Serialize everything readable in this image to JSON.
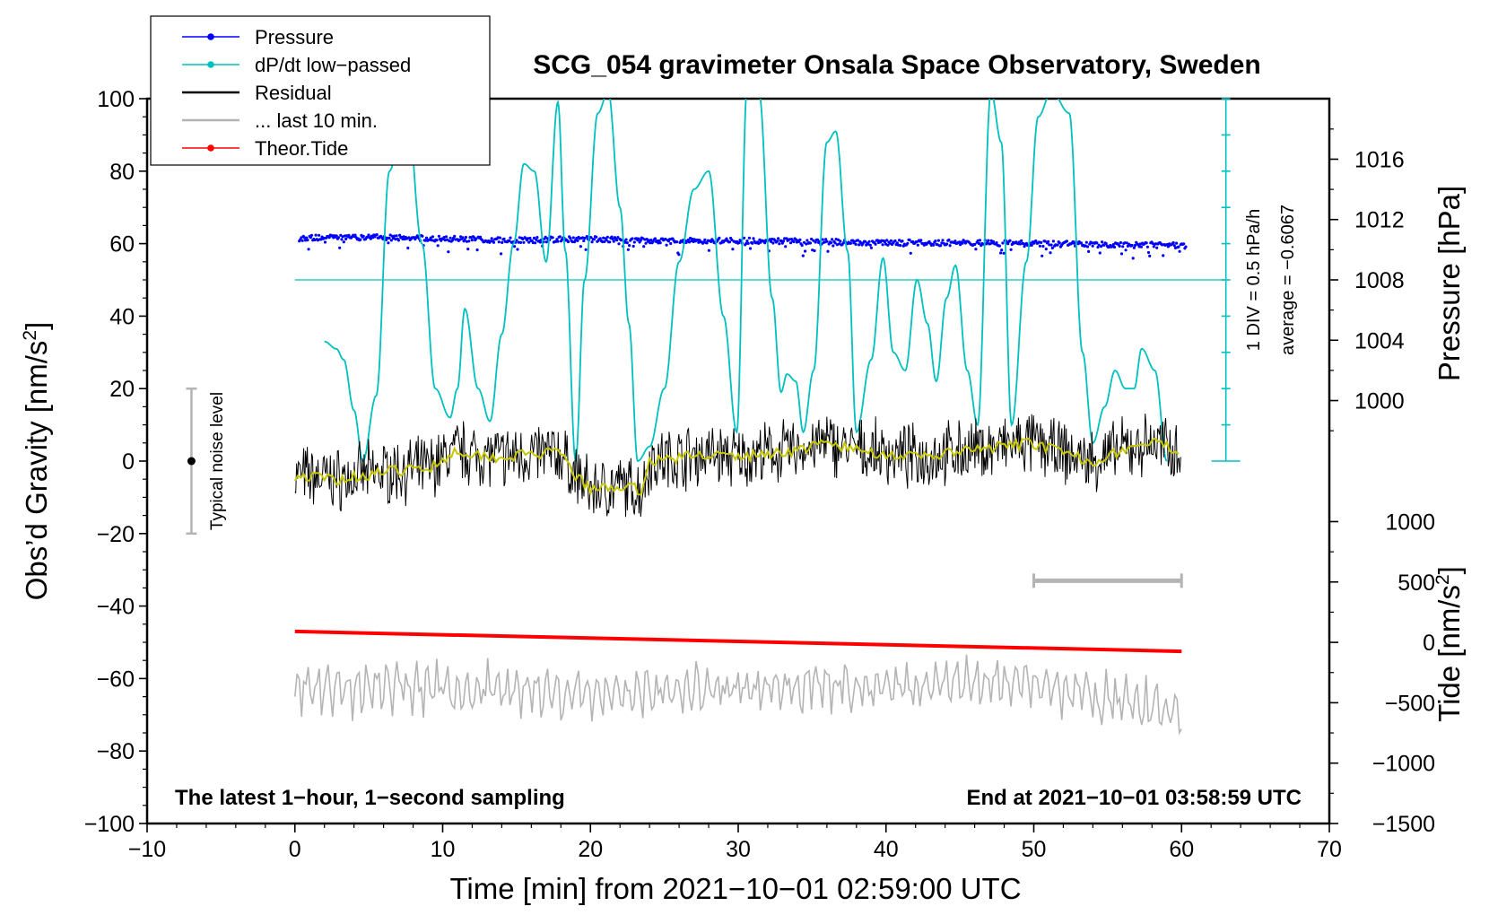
{
  "chart_data": {
    "type": "line",
    "title": "SCG_054 gravimeter Onsala Space Observatory, Sweden",
    "xlabel": "Time [min] from 2021−10−01 02:59:00 UTC",
    "ylabel_left": "Obs’d Gravity [nm/s",
    "ylabel_left_sup": "2",
    "ylabel_left_end": "]",
    "ylabel_right_pressure": "Pressure [hPa]",
    "ylabel_right_tide": "Tide [nm/s",
    "ylabel_right_tide_sup": "2",
    "ylabel_right_tide_end": "]",
    "xlim": [
      -10,
      70
    ],
    "ylim": [
      -100,
      100
    ],
    "x_ticks": [
      -10,
      0,
      10,
      20,
      30,
      40,
      50,
      60,
      70
    ],
    "x_tick_labels": [
      "−10",
      "0",
      "10",
      "20",
      "30",
      "40",
      "50",
      "60",
      "70"
    ],
    "y_ticks": [
      -100,
      -80,
      -60,
      -40,
      -20,
      0,
      20,
      40,
      60,
      80,
      100
    ],
    "y_tick_labels": [
      "−100",
      "−80",
      "−60",
      "−40",
      "−20",
      "0",
      "20",
      "40",
      "60",
      "80",
      "100"
    ],
    "pressure_axis": {
      "ticks": [
        1000,
        1004,
        1008,
        1012,
        1016
      ],
      "tick_labels": [
        "1000",
        "1004",
        "1008",
        "1012",
        "1016"
      ],
      "anchor_ticks": [
        {
          "value": 1000,
          "gravity": 16.7
        },
        {
          "value": 1016,
          "gravity": 83.3
        }
      ]
    },
    "tide_axis": {
      "ticks": [
        -1500,
        -1000,
        -500,
        0,
        500,
        1000
      ],
      "tick_labels": [
        "−1500",
        "−1000",
        "−500",
        "0",
        "500",
        "1000"
      ],
      "anchor_ticks": [
        {
          "value": -1500,
          "gravity": -100
        },
        {
          "value": 1000,
          "gravity": -16.7
        }
      ]
    },
    "dpdt_scale": {
      "label_div": "1 DIV = 0.5 hPa/h",
      "label_avg": "average = −0.6067",
      "x_position_min": 63,
      "divisions": 10,
      "gravity_range": [
        0,
        100
      ],
      "average_line_gravity": 50
    },
    "legend": [
      {
        "label": "Pressure",
        "color": "#0000ff",
        "marker": true
      },
      {
        "label": "dP/dt low−passed",
        "color": "#00c0c0",
        "marker": true
      },
      {
        "label": "Residual",
        "color": "#000000",
        "marker": false
      },
      {
        "label": "... last 10 min.",
        "color": "#b4b4b4",
        "marker": false
      },
      {
        "label": "Theor.Tide",
        "color": "#ff0000",
        "marker": true
      }
    ],
    "annotations": {
      "bottom_left": "The latest 1−hour, 1−second sampling",
      "bottom_right": "End at 2021−10−01 03:58:59 UTC",
      "noise_label": "Typical noise level"
    },
    "noise_bar": {
      "x": -7,
      "center": 0,
      "low": -20,
      "high": 20
    },
    "last10_bar": {
      "x_start": 50,
      "x_end": 60,
      "y": -33
    },
    "series": [
      {
        "name": "Pressure",
        "color": "#0000ff",
        "style": "scatter",
        "units": "gravity-axis equivalent",
        "x": [
          0,
          5,
          10,
          15,
          20,
          25,
          30,
          35,
          40,
          45,
          50,
          55,
          60
        ],
        "y": [
          61.5,
          61.8,
          61.3,
          61.0,
          61.2,
          60.8,
          60.9,
          60.5,
          60.3,
          60.2,
          60.0,
          59.8,
          59.5
        ]
      },
      {
        "name": "dP/dt low-passed",
        "color": "#00c0c0",
        "style": "line",
        "x": [
          2,
          2.8,
          3.3,
          4,
          4.6,
          5.5,
          6.4,
          7.5,
          8.6,
          9.5,
          10.5,
          11,
          11.5,
          12.4,
          13.2,
          14,
          14.8,
          15.5,
          16.2,
          17,
          17.8,
          18.3,
          19,
          19.6,
          20.5,
          21.2,
          22,
          22.6,
          23.2,
          24,
          25,
          26,
          27,
          28,
          29,
          29.9,
          30.6,
          31.4,
          32.3,
          32.9,
          33.3,
          33.9,
          34.4,
          35.1,
          36,
          36.6,
          37.4,
          38,
          39,
          39.8,
          40.5,
          41.3,
          42.1,
          42.8,
          43.4,
          44.1,
          44.7,
          45.5,
          46.2,
          47.1,
          47.8,
          48.5,
          49.5,
          50.3,
          51.2,
          52.4,
          53.3,
          54,
          54.8,
          55.5,
          56.2,
          56.8,
          57.3,
          58.2,
          59
        ],
        "y": [
          33,
          31,
          28,
          14,
          0,
          18,
          80,
          102,
          60,
          20,
          12,
          20,
          42,
          20,
          11,
          35,
          60,
          82,
          80,
          55,
          99,
          58,
          0,
          50,
          96,
          102,
          70,
          38,
          0,
          4,
          20,
          55,
          75,
          80,
          40,
          8,
          103,
          102,
          45,
          19,
          24,
          22,
          8,
          25,
          88,
          91,
          58,
          8,
          28,
          56,
          30,
          25,
          50,
          38,
          22,
          45,
          54,
          25,
          10,
          102,
          88,
          10,
          55,
          95,
          102,
          96,
          30,
          5,
          15,
          25,
          20,
          20,
          31,
          25,
          0
        ]
      },
      {
        "name": "Residual",
        "color": "#000000",
        "style": "line",
        "x": [
          0,
          3,
          6,
          9,
          11,
          12,
          14,
          16,
          18,
          19,
          20,
          22,
          23.5,
          24,
          26,
          28,
          30,
          32,
          34,
          36,
          38,
          40,
          42,
          44,
          46,
          48,
          50,
          52,
          54,
          56,
          58,
          60
        ],
        "y": [
          -4,
          -5,
          -3,
          -2,
          3,
          2,
          1,
          2,
          2,
          -4,
          -8,
          -7,
          -8,
          0,
          1,
          2,
          1,
          2,
          3,
          5,
          3,
          2,
          1,
          2,
          3,
          4,
          5,
          2,
          0,
          3,
          5,
          3
        ]
      },
      {
        "name": "Residual (smoothed)",
        "color": "#c8c800",
        "style": "line",
        "x": [
          0,
          3,
          6,
          9,
          11,
          12,
          14,
          16,
          18,
          19,
          20,
          22,
          23.5,
          24,
          26,
          28,
          30,
          32,
          34,
          36,
          38,
          40,
          42,
          44,
          46,
          48,
          50,
          52,
          54,
          56,
          58,
          60
        ],
        "y": [
          -4,
          -5,
          -3,
          -2,
          3,
          2,
          1,
          2,
          2,
          -4,
          -8,
          -7,
          -8,
          0,
          1,
          2,
          1,
          2,
          3,
          5,
          3,
          2,
          1,
          2,
          3,
          4,
          5,
          2,
          0,
          3,
          5,
          3
        ]
      },
      {
        "name": "... last 10 min.",
        "color": "#b4b4b4",
        "style": "line",
        "x": [
          0,
          10,
          20,
          30,
          40,
          50,
          60
        ],
        "y": [
          -62,
          -63,
          -64,
          -63,
          -62,
          -61,
          -70
        ]
      },
      {
        "name": "Theor.Tide",
        "color": "#ff0000",
        "style": "line",
        "x": [
          0,
          60
        ],
        "y": [
          -47,
          -52.5
        ]
      }
    ]
  }
}
